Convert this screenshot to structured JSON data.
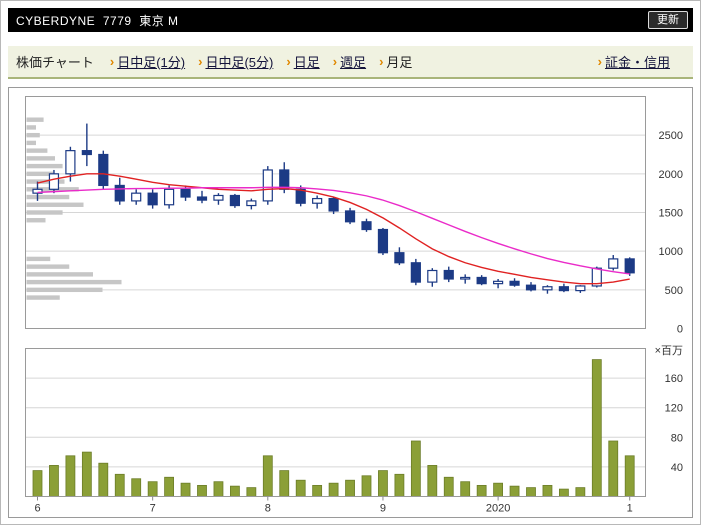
{
  "header": {
    "title": "CYBERDYNE  7779  東京 M",
    "refresh_label": "更新"
  },
  "nav": {
    "label": "株価チャート",
    "marker": "›",
    "marker_color": "#e08800",
    "tabs": [
      {
        "key": "intraday-1min",
        "label": "日中足(1分)",
        "underlined": true
      },
      {
        "key": "intraday-5min",
        "label": "日中足(5分)",
        "underlined": true
      },
      {
        "key": "daily",
        "label": "日足",
        "underlined": true
      },
      {
        "key": "weekly",
        "label": "週足",
        "underlined": true
      },
      {
        "key": "monthly",
        "label": "月足",
        "underlined": false
      }
    ],
    "right_link": {
      "key": "margin-credit",
      "label": "証金・信用",
      "underlined": true
    }
  },
  "chart_data": [
    {
      "type": "candlestick",
      "title": "price-panel",
      "ylim": [
        0,
        3000
      ],
      "yticks": [
        0,
        500,
        1000,
        1500,
        2000,
        2500
      ],
      "grid": true,
      "legend": "none",
      "x_axis_labels": [
        {
          "label": "6",
          "index": 0
        },
        {
          "label": "7",
          "index": 7
        },
        {
          "label": "8",
          "index": 14
        },
        {
          "label": "9",
          "index": 21
        },
        {
          "label": "2020",
          "index": 28
        },
        {
          "label": "1",
          "index": 36
        }
      ],
      "candles_ohlc": [
        [
          1750,
          1900,
          1650,
          1800
        ],
        [
          1800,
          2050,
          1750,
          2000
        ],
        [
          2000,
          2350,
          1900,
          2300
        ],
        [
          2300,
          2650,
          2100,
          2250
        ],
        [
          2250,
          2300,
          1800,
          1850
        ],
        [
          1850,
          1950,
          1600,
          1650
        ],
        [
          1650,
          1800,
          1600,
          1750
        ],
        [
          1750,
          1800,
          1550,
          1600
        ],
        [
          1600,
          1850,
          1550,
          1800
        ],
        [
          1800,
          1850,
          1650,
          1700
        ],
        [
          1700,
          1780,
          1620,
          1660
        ],
        [
          1660,
          1750,
          1600,
          1720
        ],
        [
          1720,
          1740,
          1560,
          1590
        ],
        [
          1590,
          1680,
          1540,
          1650
        ],
        [
          1650,
          2100,
          1600,
          2050
        ],
        [
          2050,
          2150,
          1750,
          1800
        ],
        [
          1800,
          1850,
          1580,
          1620
        ],
        [
          1620,
          1720,
          1550,
          1680
        ],
        [
          1680,
          1700,
          1480,
          1520
        ],
        [
          1520,
          1560,
          1350,
          1380
        ],
        [
          1380,
          1420,
          1250,
          1280
        ],
        [
          1280,
          1300,
          950,
          980
        ],
        [
          980,
          1050,
          820,
          850
        ],
        [
          850,
          900,
          560,
          600
        ],
        [
          600,
          780,
          540,
          750
        ],
        [
          750,
          800,
          600,
          640
        ],
        [
          640,
          700,
          580,
          660
        ],
        [
          660,
          690,
          560,
          580
        ],
        [
          580,
          640,
          520,
          610
        ],
        [
          610,
          650,
          540,
          560
        ],
        [
          560,
          600,
          480,
          500
        ],
        [
          500,
          560,
          450,
          540
        ],
        [
          540,
          580,
          470,
          490
        ],
        [
          490,
          560,
          460,
          550
        ],
        [
          550,
          800,
          530,
          780
        ],
        [
          780,
          950,
          750,
          900
        ],
        [
          900,
          920,
          680,
          720
        ]
      ],
      "ma_short": {
        "name": "moving-average-short",
        "color": "#e02222",
        "values": [
          1880,
          1930,
          1970,
          2000,
          2000,
          1970,
          1930,
          1890,
          1860,
          1840,
          1820,
          1800,
          1790,
          1780,
          1800,
          1810,
          1790,
          1750,
          1700,
          1630,
          1540,
          1430,
          1300,
          1160,
          1030,
          930,
          850,
          790,
          740,
          700,
          660,
          630,
          600,
          580,
          580,
          600,
          640
        ]
      },
      "ma_long": {
        "name": "moving-average-long",
        "color": "#ea2bc9",
        "values": [
          1760,
          1770,
          1780,
          1790,
          1800,
          1805,
          1810,
          1810,
          1815,
          1815,
          1820,
          1820,
          1820,
          1820,
          1825,
          1825,
          1820,
          1805,
          1785,
          1755,
          1715,
          1660,
          1590,
          1510,
          1425,
          1340,
          1255,
          1175,
          1100,
          1030,
          965,
          905,
          855,
          810,
          770,
          735,
          705
        ]
      },
      "volume_profile": [
        [
          2700,
          18
        ],
        [
          2600,
          10
        ],
        [
          2500,
          14
        ],
        [
          2400,
          10
        ],
        [
          2300,
          22
        ],
        [
          2200,
          30
        ],
        [
          2100,
          38
        ],
        [
          2000,
          28
        ],
        [
          1900,
          40
        ],
        [
          1800,
          55
        ],
        [
          1700,
          45
        ],
        [
          1600,
          60
        ],
        [
          1500,
          38
        ],
        [
          1400,
          20
        ],
        [
          900,
          25
        ],
        [
          800,
          45
        ],
        [
          700,
          70
        ],
        [
          600,
          100
        ],
        [
          500,
          80
        ],
        [
          400,
          35
        ]
      ],
      "colors": {
        "candle": "#1c3a85",
        "candle_up_fill": "#ffffff",
        "grid": "#d6d6d6",
        "border": "#9a9a9a",
        "profile": "#c6c6c6"
      }
    },
    {
      "type": "bar",
      "title": "volume-panel",
      "unit_label": "×百万",
      "ylim": [
        0,
        200
      ],
      "yticks": [
        40,
        80,
        120,
        160
      ],
      "grid": true,
      "values": [
        35,
        42,
        55,
        60,
        45,
        30,
        24,
        20,
        26,
        18,
        15,
        20,
        14,
        12,
        55,
        35,
        22,
        15,
        18,
        22,
        28,
        35,
        30,
        75,
        42,
        26,
        20,
        15,
        18,
        14,
        12,
        15,
        10,
        12,
        185,
        75,
        55
      ],
      "colors": {
        "bar_fill": "#8b9f37",
        "bar_stroke": "#6c7d28",
        "grid": "#d6d6d6",
        "border": "#9a9a9a"
      }
    }
  ]
}
